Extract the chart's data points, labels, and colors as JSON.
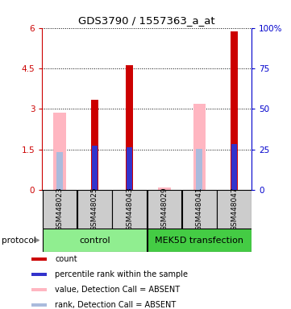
{
  "title": "GDS3790 / 1557363_a_at",
  "samples": [
    "GSM448023",
    "GSM448025",
    "GSM448043",
    "GSM448029",
    "GSM448041",
    "GSM448047"
  ],
  "count_values": [
    null,
    3.35,
    4.62,
    null,
    null,
    5.87
  ],
  "rank_values": [
    null,
    1.65,
    1.57,
    null,
    null,
    1.7
  ],
  "absent_value_values": [
    2.85,
    null,
    null,
    0.1,
    3.2,
    null
  ],
  "absent_rank_values": [
    1.4,
    null,
    null,
    null,
    1.53,
    null
  ],
  "ylim_left": [
    0,
    6
  ],
  "ylim_right": [
    0,
    100
  ],
  "yticks_left": [
    0,
    1.5,
    3.0,
    4.5,
    6.0
  ],
  "ytick_labels_left": [
    "0",
    "1.5",
    "3",
    "4.5",
    "6"
  ],
  "yticks_right": [
    0,
    25,
    50,
    75,
    100
  ],
  "ytick_labels_right": [
    "0",
    "25",
    "50",
    "75",
    "100%"
  ],
  "left_axis_color": "#CC0000",
  "right_axis_color": "#0000CC",
  "red_bar_color": "#CC0000",
  "blue_bar_color": "#3333CC",
  "pink_bar_color": "#FFB6C1",
  "lblue_bar_color": "#AABBDD",
  "label_box_color": "#CCCCCC",
  "ctrl_color": "#90EE90",
  "mek_color": "#44CC44",
  "legend_items": [
    {
      "color": "#CC0000",
      "label": "count"
    },
    {
      "color": "#3333CC",
      "label": "percentile rank within the sample"
    },
    {
      "color": "#FFB6C1",
      "label": "value, Detection Call = ABSENT"
    },
    {
      "color": "#AABBDD",
      "label": "rank, Detection Call = ABSENT"
    }
  ]
}
